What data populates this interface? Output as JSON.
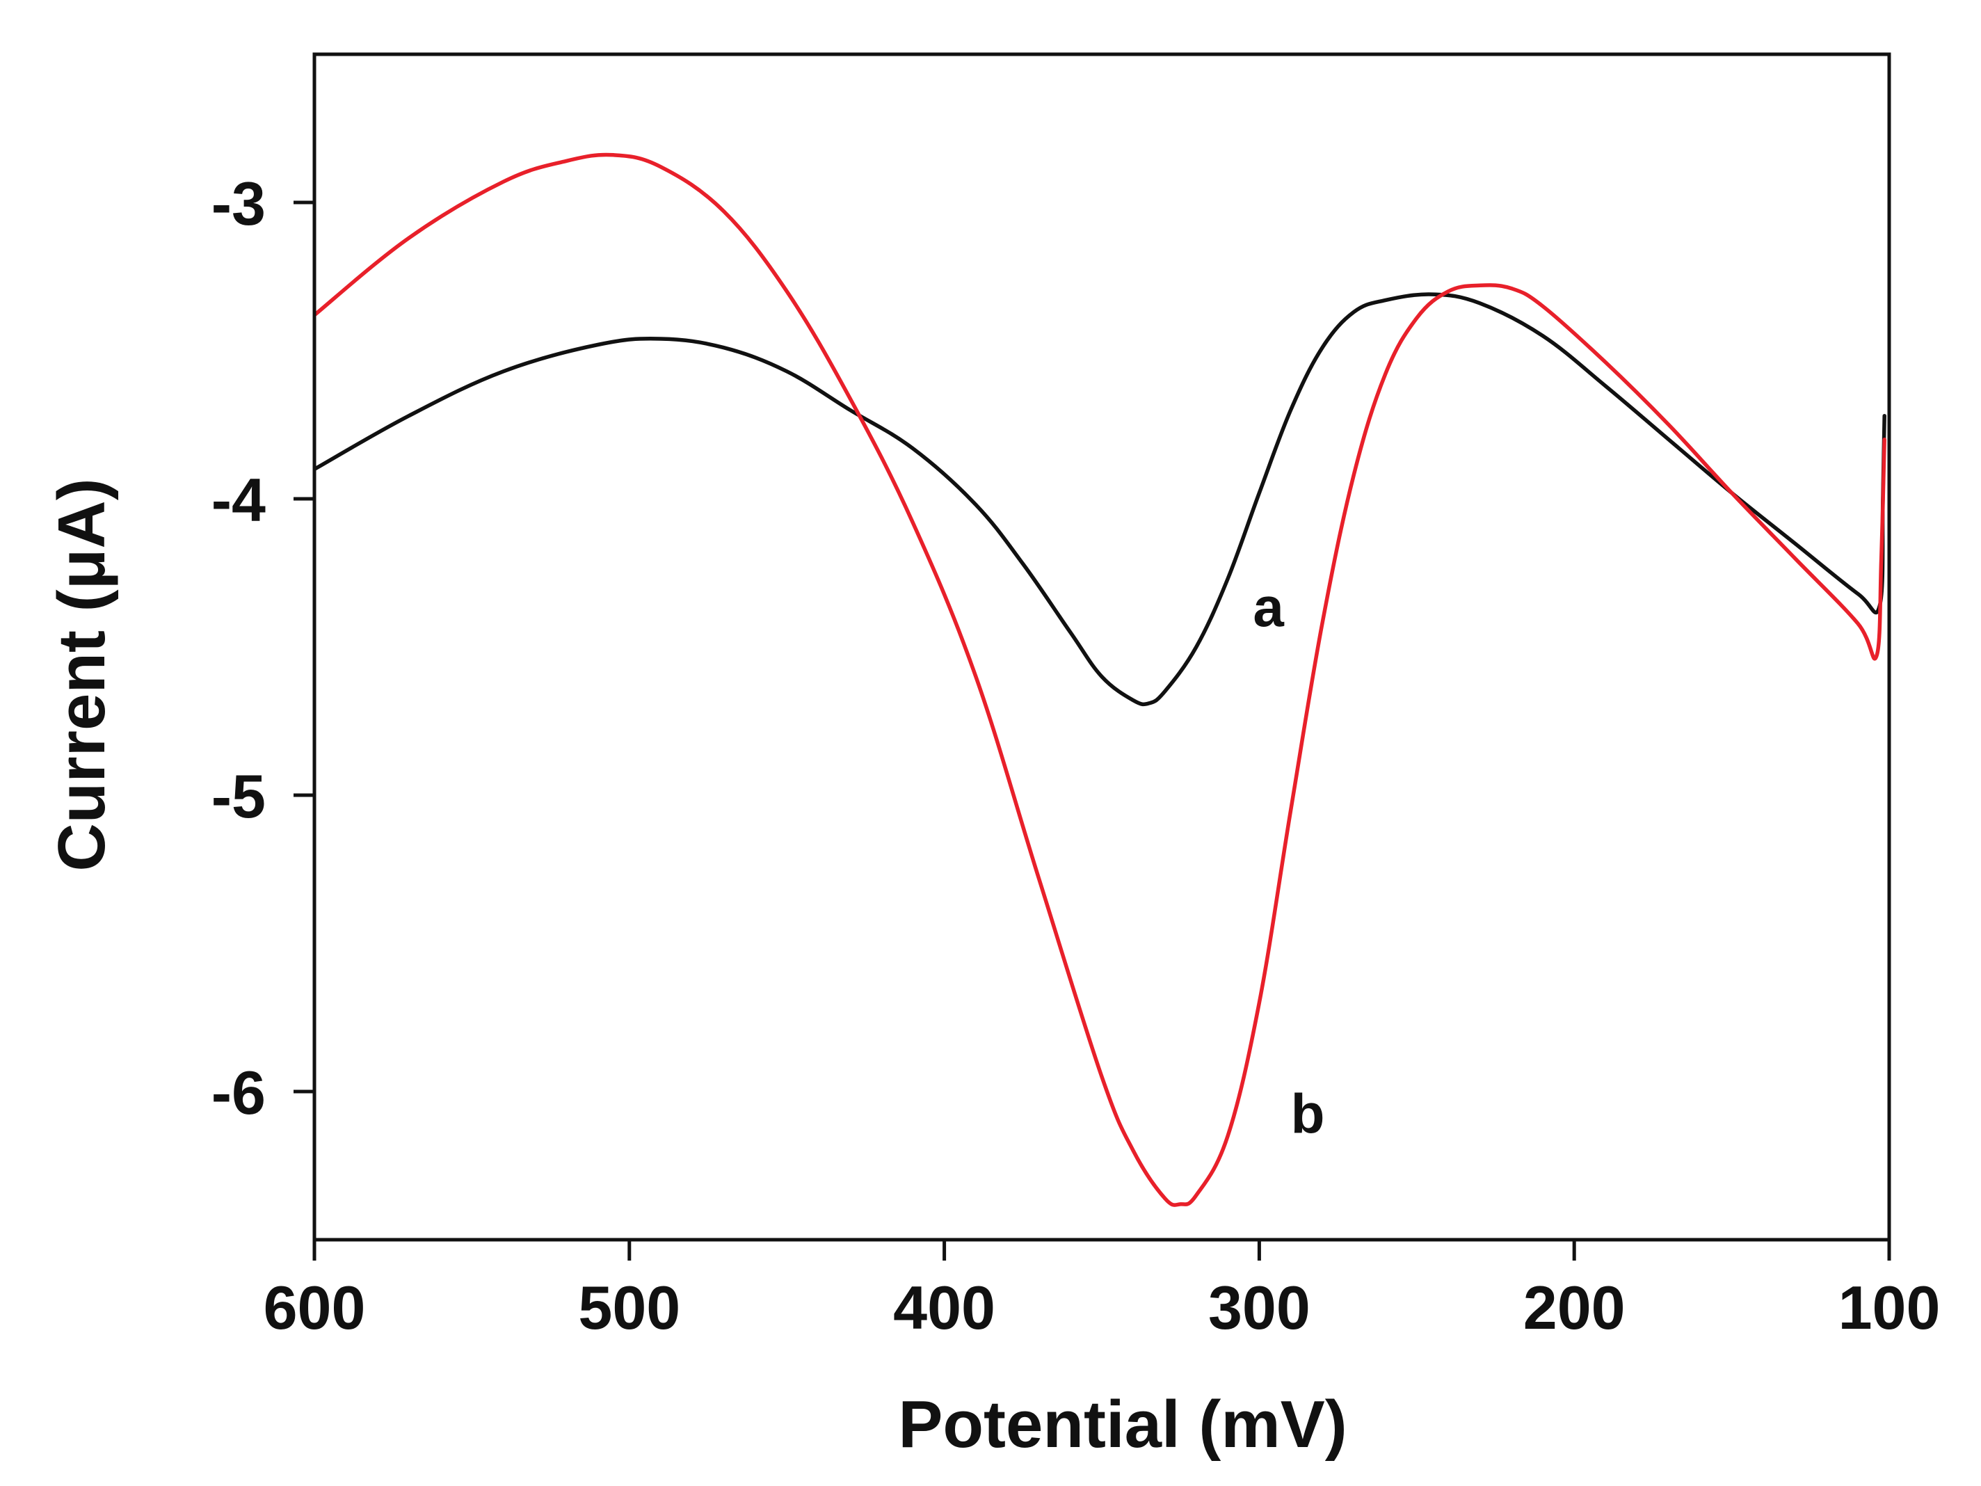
{
  "chart_data": {
    "type": "line",
    "title": "",
    "xlabel": "Potential (mV)",
    "ylabel": "Current (μA)",
    "xlim": [
      600,
      100
    ],
    "ylim": [
      -6.5,
      -2.5
    ],
    "x_axis_reversed": true,
    "grid": false,
    "legend": "none",
    "x_ticks": [
      600,
      500,
      400,
      300,
      200,
      100
    ],
    "x_tick_labels": [
      "600",
      "500",
      "400",
      "300",
      "200",
      "100"
    ],
    "y_ticks": [
      -3,
      -4,
      -5,
      -6
    ],
    "y_tick_labels": [
      "-3",
      "-4",
      "-5",
      "-6"
    ],
    "colors": {
      "a": "#111111",
      "b": "#e8202a",
      "axis": "#111111"
    },
    "series": [
      {
        "name": "a",
        "label": "a",
        "color": "#111111",
        "x": [
          600,
          570,
          540,
          510,
          490,
          470,
          450,
          430,
          410,
          390,
          375,
          360,
          350,
          340,
          335,
          330,
          320,
          310,
          300,
          290,
          280,
          270,
          260,
          245,
          230,
          210,
          190,
          170,
          150,
          130,
          110,
          103,
          102,
          101.5
        ],
        "y": [
          -3.9,
          -3.72,
          -3.57,
          -3.48,
          -3.46,
          -3.49,
          -3.57,
          -3.7,
          -3.83,
          -4.02,
          -4.22,
          -4.45,
          -4.6,
          -4.68,
          -4.69,
          -4.65,
          -4.5,
          -4.27,
          -3.98,
          -3.7,
          -3.49,
          -3.37,
          -3.33,
          -3.31,
          -3.34,
          -3.45,
          -3.62,
          -3.8,
          -3.98,
          -4.15,
          -4.32,
          -4.36,
          -4.0,
          -3.72
        ]
      },
      {
        "name": "b",
        "label": "b",
        "color": "#e8202a",
        "x": [
          600,
          570,
          540,
          520,
          505,
          490,
          470,
          450,
          430,
          410,
          390,
          370,
          350,
          340,
          330,
          325,
          320,
          310,
          300,
          290,
          280,
          270,
          260,
          250,
          240,
          230,
          220,
          210,
          190,
          170,
          150,
          130,
          110,
          104,
          102.5,
          101.5
        ],
        "y": [
          -3.38,
          -3.12,
          -2.93,
          -2.86,
          -2.84,
          -2.88,
          -3.03,
          -3.3,
          -3.66,
          -4.08,
          -4.6,
          -5.28,
          -5.95,
          -6.2,
          -6.36,
          -6.38,
          -6.35,
          -6.15,
          -5.7,
          -5.05,
          -4.42,
          -3.92,
          -3.58,
          -3.39,
          -3.3,
          -3.28,
          -3.29,
          -3.35,
          -3.54,
          -3.75,
          -3.98,
          -4.2,
          -4.42,
          -4.53,
          -4.2,
          -3.8
        ]
      }
    ],
    "annotations": [
      {
        "text": "a",
        "x": 302,
        "y": -4.43,
        "series": "a"
      },
      {
        "text": "b",
        "x": 290,
        "y": -6.14,
        "series": "b"
      }
    ]
  }
}
